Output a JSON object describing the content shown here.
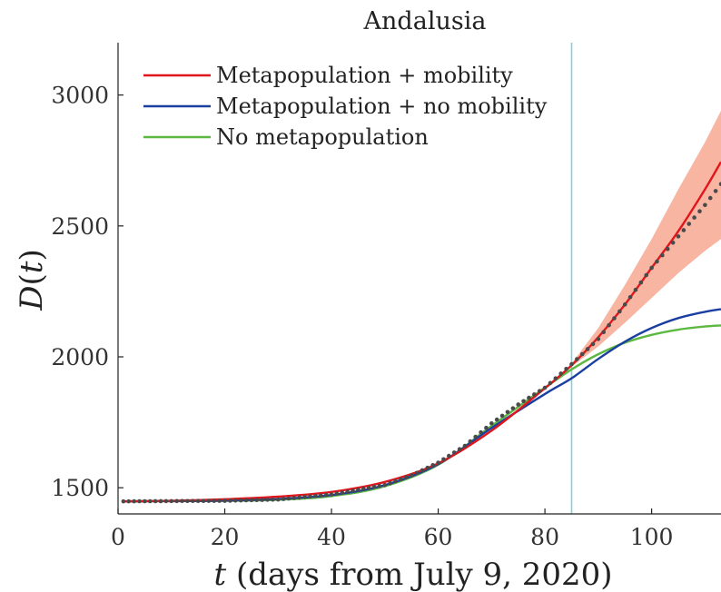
{
  "chart_data": {
    "type": "line",
    "title": "Andalusia",
    "xlabel_var": "t",
    "xlabel_rest": " (days from July 9, 2020)",
    "ylabel_var": "D",
    "ylabel_arg": "t",
    "xlim": [
      0,
      113
    ],
    "ylim": [
      1400,
      3200
    ],
    "xticks": [
      0,
      20,
      40,
      60,
      80,
      100
    ],
    "yticks": [
      1500,
      2000,
      2500,
      3000
    ],
    "grid": false,
    "legend_position": "top-left",
    "vline_x": 85,
    "vline_color": "#7fd1d8",
    "series": [
      {
        "name": "Metapopulation + mobility",
        "color": "#e0161c",
        "x": [
          1,
          10,
          20,
          30,
          40,
          50,
          60,
          70,
          80,
          85,
          90,
          95,
          100,
          105,
          110,
          113
        ],
        "y": [
          1448,
          1450,
          1456,
          1466,
          1484,
          1522,
          1593,
          1718,
          1880,
          1968,
          2075,
          2200,
          2340,
          2480,
          2640,
          2745
        ]
      },
      {
        "name": "Metapopulation + no mobility",
        "color": "#1a3fa0",
        "x": [
          1,
          10,
          20,
          30,
          40,
          50,
          60,
          70,
          80,
          85,
          90,
          95,
          100,
          105,
          110,
          113
        ],
        "y": [
          1448,
          1449,
          1451,
          1457,
          1472,
          1510,
          1590,
          1728,
          1858,
          1918,
          1992,
          2058,
          2110,
          2148,
          2172,
          2182
        ]
      },
      {
        "name": "No metapopulation",
        "color": "#5cb840",
        "x": [
          1,
          10,
          20,
          30,
          40,
          50,
          60,
          70,
          80,
          85,
          90,
          95,
          100,
          105,
          110,
          113
        ],
        "y": [
          1448,
          1449,
          1450,
          1454,
          1468,
          1506,
          1588,
          1736,
          1882,
          1952,
          2010,
          2054,
          2084,
          2104,
          2116,
          2120
        ]
      }
    ],
    "observed": {
      "color": "#4a4a4a",
      "x": [
        1,
        10,
        20,
        30,
        40,
        50,
        55,
        60,
        65,
        70,
        75,
        80,
        85,
        90,
        95,
        100,
        105,
        110,
        113
      ],
      "y": [
        1448,
        1449,
        1450,
        1455,
        1474,
        1510,
        1547,
        1596,
        1660,
        1746,
        1818,
        1882,
        1972,
        2068,
        2200,
        2340,
        2460,
        2580,
        2660
      ]
    },
    "band": {
      "color": "#f6a088",
      "x": [
        85,
        90,
        95,
        100,
        105,
        110,
        113
      ],
      "lower": [
        1962,
        2040,
        2130,
        2225,
        2320,
        2405,
        2450
      ],
      "upper": [
        1975,
        2110,
        2275,
        2450,
        2640,
        2820,
        2940
      ]
    }
  }
}
